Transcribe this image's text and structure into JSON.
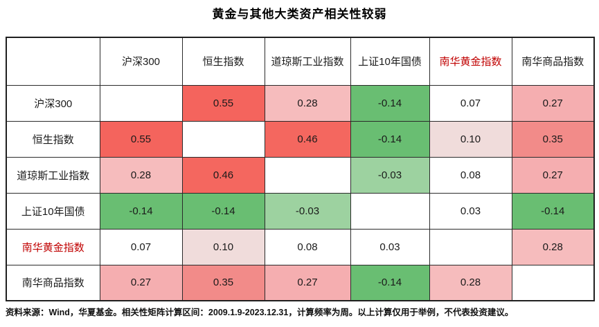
{
  "title": "黄金与其他大类资产相关性较弱",
  "footnote": "资料来源：Wind，华夏基金。相关性矩阵计算区间：2009.1.9-2023.12.31，计算频率为周。以上计算仅用于举例，不代表投资建议。",
  "colors": {
    "highlight_red": "#C00000",
    "strong_positive": "#F4655E",
    "mid_white": "#FFFFFF",
    "strong_negative": "#69BE72"
  },
  "matrix": {
    "corner_label": "",
    "col_labels": [
      "沪深300",
      "恒生指数",
      "道琼斯工业指数",
      "上证10年国债",
      "南华黄金指数",
      "南华商品指数"
    ],
    "row_labels": [
      "沪深300",
      "恒生指数",
      "道琼斯工业指数",
      "上证10年国债",
      "南华黄金指数",
      "南华商品指数"
    ],
    "highlight_label": "南华黄金指数",
    "cells": [
      [
        {
          "v": "",
          "bg": "#FFFFFF"
        },
        {
          "v": "0.55",
          "bg": "#F4645D"
        },
        {
          "v": "0.28",
          "bg": "#F6BCBD"
        },
        {
          "v": "-0.14",
          "bg": "#69BE72"
        },
        {
          "v": "0.07",
          "bg": "#FFFFFF"
        },
        {
          "v": "0.27",
          "bg": "#F5AEB0"
        }
      ],
      [
        {
          "v": "0.55",
          "bg": "#F4645D"
        },
        {
          "v": "",
          "bg": "#FFFFFF"
        },
        {
          "v": "0.46",
          "bg": "#F4675F"
        },
        {
          "v": "-0.14",
          "bg": "#69BE72"
        },
        {
          "v": "0.10",
          "bg": "#F0DCDB"
        },
        {
          "v": "0.35",
          "bg": "#F28B89"
        }
      ],
      [
        {
          "v": "0.28",
          "bg": "#F6BCBD"
        },
        {
          "v": "0.46",
          "bg": "#F4675F"
        },
        {
          "v": "",
          "bg": "#FFFFFF"
        },
        {
          "v": "-0.03",
          "bg": "#9DD2A0"
        },
        {
          "v": "0.08",
          "bg": "#FFFFFF"
        },
        {
          "v": "0.27",
          "bg": "#F5AEB0"
        }
      ],
      [
        {
          "v": "-0.14",
          "bg": "#69BE72"
        },
        {
          "v": "-0.14",
          "bg": "#69BE72"
        },
        {
          "v": "-0.03",
          "bg": "#9DD2A0"
        },
        {
          "v": "",
          "bg": "#FFFFFF"
        },
        {
          "v": "0.03",
          "bg": "#FFFFFF"
        },
        {
          "v": "-0.14",
          "bg": "#69BE72"
        }
      ],
      [
        {
          "v": "0.07",
          "bg": "#FFFFFF"
        },
        {
          "v": "0.10",
          "bg": "#F0DCDB"
        },
        {
          "v": "0.08",
          "bg": "#FFFFFF"
        },
        {
          "v": "0.03",
          "bg": "#FFFFFF"
        },
        {
          "v": "",
          "bg": "#FFFFFF"
        },
        {
          "v": "0.28",
          "bg": "#F6BCBD"
        }
      ],
      [
        {
          "v": "0.27",
          "bg": "#F5AEB0"
        },
        {
          "v": "0.35",
          "bg": "#F28B89"
        },
        {
          "v": "0.27",
          "bg": "#F5AEB0"
        },
        {
          "v": "-0.14",
          "bg": "#69BE72"
        },
        {
          "v": "0.28",
          "bg": "#F6BCBD"
        },
        {
          "v": "",
          "bg": "#FFFFFF"
        }
      ]
    ]
  },
  "chart_data": {
    "type": "heatmap",
    "title": "黄金与其他大类资产相关性较弱",
    "x_labels": [
      "沪深300",
      "恒生指数",
      "道琼斯工业指数",
      "上证10年国债",
      "南华黄金指数",
      "南华商品指数"
    ],
    "y_labels": [
      "沪深300",
      "恒生指数",
      "道琼斯工业指数",
      "上证10年国债",
      "南华黄金指数",
      "南华商品指数"
    ],
    "values": [
      [
        null,
        0.55,
        0.28,
        -0.14,
        0.07,
        0.27
      ],
      [
        0.55,
        null,
        0.46,
        -0.14,
        0.1,
        0.35
      ],
      [
        0.28,
        0.46,
        null,
        -0.03,
        0.08,
        0.27
      ],
      [
        -0.14,
        -0.14,
        -0.03,
        null,
        0.03,
        -0.14
      ],
      [
        0.07,
        0.1,
        0.08,
        0.03,
        null,
        0.28
      ],
      [
        0.27,
        0.35,
        0.27,
        -0.14,
        0.28,
        null
      ]
    ],
    "value_range": [
      -0.14,
      0.55
    ],
    "color_scale": {
      "negative": "#69BE72",
      "mid": "#FFFFFF",
      "positive": "#F4655E"
    },
    "legend_position": "none",
    "grid": true
  }
}
